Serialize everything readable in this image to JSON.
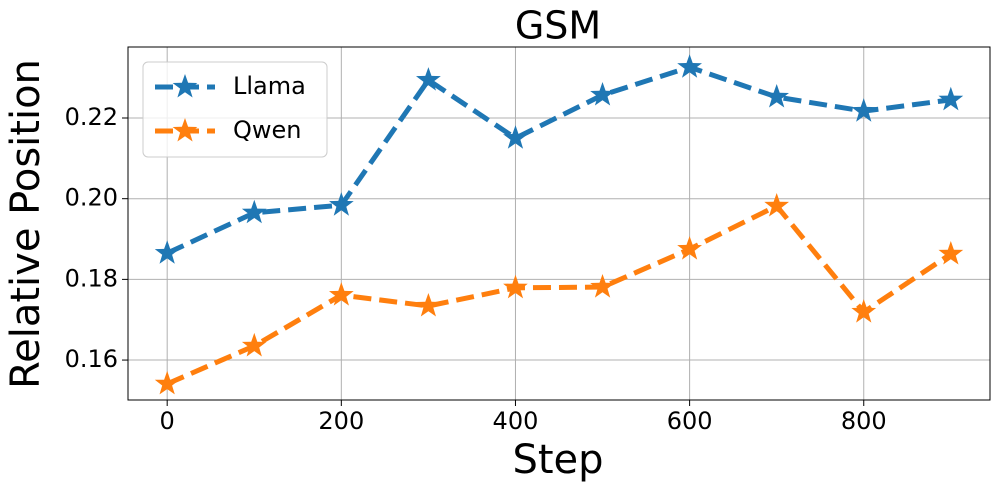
{
  "chart_data": {
    "type": "line",
    "title": "GSM",
    "x_label": "Step",
    "y_label": "Relative Position",
    "x": [
      0,
      100,
      200,
      300,
      400,
      500,
      600,
      700,
      800,
      900
    ],
    "series": [
      {
        "name": "Llama",
        "color": "#1f77b4",
        "values": [
          0.1865,
          0.1965,
          0.1984,
          0.2294,
          0.215,
          0.2257,
          0.2326,
          0.2252,
          0.2217,
          0.2245
        ]
      },
      {
        "name": "Qwen",
        "color": "#ff7f0e",
        "values": [
          0.1541,
          0.1635,
          0.1761,
          0.1734,
          0.1779,
          0.1781,
          0.1875,
          0.1982,
          0.1719,
          0.1863
        ]
      }
    ],
    "xlim": [
      -45,
      945
    ],
    "ylim": [
      0.1501,
      0.2376
    ],
    "xticks": [
      0,
      200,
      400,
      600,
      800
    ],
    "yticks": [
      0.16,
      0.18,
      {
        "value": 0.2,
        "label": "0.20"
      },
      0.22
    ],
    "grid": true,
    "legend": "upper left"
  }
}
